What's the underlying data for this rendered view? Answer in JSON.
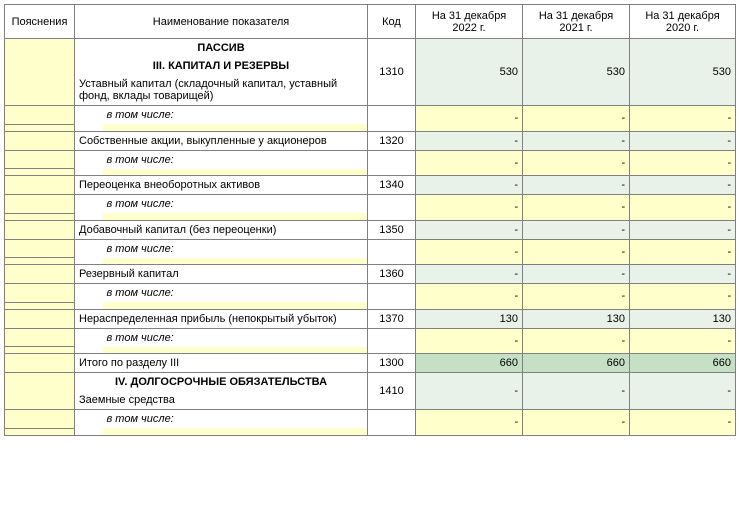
{
  "colors": {
    "notes_bg": "#ffffcc",
    "val_normal_bg": "#e8f2e8",
    "val_total_bg": "#c6e0c6",
    "border": "#808080"
  },
  "header": {
    "notes": "Пояснения",
    "name": "Наименование показателя",
    "code": "Код",
    "y1": "На 31 декабря 2022 г.",
    "y2": "На 31 декабря 2021 г.",
    "y3": "На 31 декабря 2020 г."
  },
  "section_passiv": "ПАССИВ",
  "section_iii": "III. КАПИТАЛ И РЕЗЕРВЫ",
  "section_iv": "IV. ДОЛГОСРОЧНЫЕ ОБЯЗАТЕЛЬСТВА",
  "sub_label": "в том числе:",
  "rows": {
    "r1310": {
      "name": "Уставный капитал (складочный капитал, уставный фонд, вклады товарищей)",
      "code": "1310",
      "y1": "530",
      "y2": "530",
      "y3": "530"
    },
    "r1320": {
      "name": "Собственные акции, выкупленные у акционеров",
      "code": "1320",
      "y1": "-",
      "y2": "-",
      "y3": "-"
    },
    "r1340": {
      "name": "Переоценка внеоборотных активов",
      "code": "1340",
      "y1": "-",
      "y2": "-",
      "y3": "-"
    },
    "r1350": {
      "name": "Добавочный капитал (без переоценки)",
      "code": "1350",
      "y1": "-",
      "y2": "-",
      "y3": "-"
    },
    "r1360": {
      "name": "Резервный капитал",
      "code": "1360",
      "y1": "-",
      "y2": "-",
      "y3": "-"
    },
    "r1370": {
      "name": "Нераспределенная прибыль (непокрытый убыток)",
      "code": "1370",
      "y1": "130",
      "y2": "130",
      "y3": "130"
    },
    "r1300": {
      "name": "Итого по разделу III",
      "code": "1300",
      "y1": "660",
      "y2": "660",
      "y3": "660"
    },
    "r1410": {
      "name": "Заемные средства",
      "code": "1410",
      "y1": "-",
      "y2": "-",
      "y3": "-"
    }
  },
  "dash": "-"
}
